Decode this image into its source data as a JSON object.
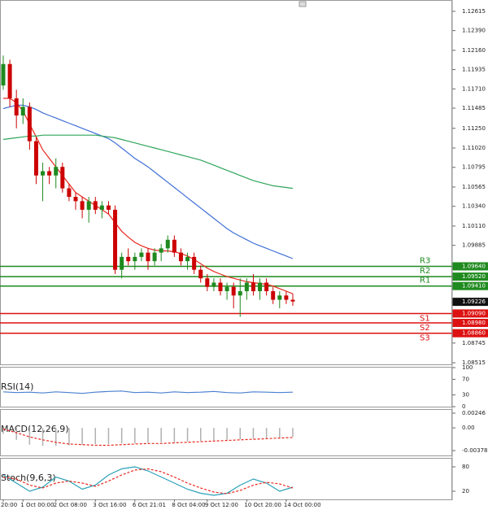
{
  "chart_data": [
    {
      "type": "candlestick",
      "categories": [
        "20:00",
        null,
        null,
        "1 Oct 00:00",
        null,
        null,
        null,
        null,
        "2 Oct 08:00",
        null,
        null,
        null,
        null,
        null,
        "3 Oct 16:00",
        null,
        null,
        null,
        null,
        null,
        "6 Oct 21:01",
        null,
        null,
        null,
        null,
        null,
        "8 Oct 04:00",
        null,
        null,
        null,
        null,
        "9 Oct 12:00",
        null,
        null,
        null,
        null,
        null,
        "10 Oct 20:00",
        null,
        null,
        null,
        null,
        null,
        "14 Oct 00:00",
        null
      ],
      "ohlc": [
        [
          1.1175,
          1.121,
          1.117,
          1.12
        ],
        [
          1.12,
          1.1205,
          1.115,
          1.116
        ],
        [
          1.116,
          1.117,
          1.1125,
          1.114
        ],
        [
          1.114,
          1.116,
          1.113,
          1.115
        ],
        [
          1.115,
          1.1155,
          1.11,
          1.111
        ],
        [
          1.111,
          1.1115,
          1.106,
          1.107
        ],
        [
          1.107,
          1.1085,
          1.104,
          1.1075
        ],
        [
          1.1075,
          1.108,
          1.106,
          1.107
        ],
        [
          1.107,
          1.109,
          1.1055,
          1.108
        ],
        [
          1.108,
          1.1085,
          1.105,
          1.1055
        ],
        [
          1.1055,
          1.106,
          1.104,
          1.1045
        ],
        [
          1.1045,
          1.105,
          1.103,
          1.104
        ],
        [
          1.104,
          1.1045,
          1.102,
          1.103
        ],
        [
          1.103,
          1.1045,
          1.1015,
          1.104
        ],
        [
          1.104,
          1.1045,
          1.1025,
          1.103
        ],
        [
          1.103,
          1.104,
          1.102,
          1.1035
        ],
        [
          1.1035,
          1.104,
          1.1025,
          1.103
        ],
        [
          1.103,
          1.1035,
          1.0955,
          1.096
        ],
        [
          1.096,
          1.098,
          1.095,
          1.0975
        ],
        [
          1.0975,
          1.0985,
          1.0965,
          1.097
        ],
        [
          1.097,
          1.098,
          1.096,
          1.0975
        ],
        [
          1.0975,
          1.0985,
          1.097,
          1.098
        ],
        [
          1.098,
          1.0985,
          1.096,
          1.097
        ],
        [
          1.097,
          1.0985,
          1.0965,
          1.098
        ],
        [
          1.098,
          1.099,
          1.097,
          1.0985
        ],
        [
          1.0985,
          1.1,
          1.098,
          1.0995
        ],
        [
          1.0995,
          1.1,
          1.0975,
          1.098
        ],
        [
          1.098,
          1.0985,
          1.0965,
          1.097
        ],
        [
          1.097,
          1.098,
          1.096,
          1.0975
        ],
        [
          1.0975,
          1.098,
          1.0955,
          1.096
        ],
        [
          1.096,
          1.0965,
          1.0945,
          1.095
        ],
        [
          1.095,
          1.0955,
          1.0935,
          1.094
        ],
        [
          1.094,
          1.095,
          1.0935,
          1.0945
        ],
        [
          1.0945,
          1.095,
          1.093,
          1.0935
        ],
        [
          1.0935,
          1.0945,
          1.0925,
          1.094
        ],
        [
          1.094,
          1.0945,
          1.0915,
          1.093
        ],
        [
          1.093,
          1.095,
          1.0905,
          1.0935
        ],
        [
          1.0935,
          1.095,
          1.0925,
          1.0945
        ],
        [
          1.0945,
          1.0955,
          1.093,
          1.0935
        ],
        [
          1.0935,
          1.095,
          1.0925,
          1.0945
        ],
        [
          1.0945,
          1.095,
          1.093,
          1.0935
        ],
        [
          1.0935,
          1.094,
          1.092,
          1.0925
        ],
        [
          1.0925,
          1.0935,
          1.0915,
          1.093
        ],
        [
          1.093,
          1.0935,
          1.092,
          1.0925
        ],
        [
          1.0925,
          1.0932,
          1.0918,
          1.0923
        ]
      ],
      "up_color": "#1f8a1f",
      "down_color": "#cc0000",
      "lines": [
        {
          "color": "#e8281e",
          "values": [
            1.116,
            1.116,
            1.1155,
            1.1145,
            1.113,
            1.1115,
            1.11,
            1.109,
            1.108,
            1.107,
            1.106,
            1.105,
            1.1045,
            1.104,
            1.1035,
            1.103,
            1.1025,
            1.1015,
            1.1005,
            1.0998,
            1.0992,
            1.0988,
            1.0985,
            1.0983,
            1.0982,
            1.0982,
            1.0981,
            1.0979,
            1.0976,
            1.0972,
            1.0967,
            1.0962,
            1.0958,
            1.0955,
            1.0952,
            1.095,
            1.0948,
            1.0946,
            1.0945,
            1.0944,
            1.0943,
            1.0941,
            1.0938,
            1.0935,
            1.0932
          ]
        },
        {
          "color": "#3f6fd6",
          "values": [
            1.1148,
            1.115,
            1.1152,
            1.1152,
            1.115,
            1.1147,
            1.1143,
            1.114,
            1.1137,
            1.1134,
            1.1131,
            1.1128,
            1.1125,
            1.1122,
            1.1119,
            1.1116,
            1.1113,
            1.1108,
            1.1102,
            1.1096,
            1.109,
            1.1085,
            1.108,
            1.1074,
            1.1068,
            1.1062,
            1.1056,
            1.105,
            1.1044,
            1.1038,
            1.1032,
            1.1026,
            1.102,
            1.1014,
            1.1008,
            1.1003,
            1.0999,
            1.0995,
            1.0991,
            1.0988,
            1.0985,
            1.0982,
            1.0979,
            1.0976,
            1.0973
          ]
        },
        {
          "color": "#2fa55a",
          "values": [
            1.1112,
            1.1113,
            1.1114,
            1.1115,
            1.1116,
            1.1116,
            1.1117,
            1.1117,
            1.1117,
            1.1117,
            1.1117,
            1.1117,
            1.1117,
            1.1117,
            1.1117,
            1.1116,
            1.1115,
            1.1114,
            1.1112,
            1.111,
            1.1108,
            1.1106,
            1.1104,
            1.1102,
            1.11,
            1.1098,
            1.1096,
            1.1094,
            1.1092,
            1.109,
            1.1088,
            1.1085,
            1.1082,
            1.1079,
            1.1076,
            1.1073,
            1.107,
            1.1067,
            1.1064,
            1.1062,
            1.106,
            1.1058,
            1.1057,
            1.1056,
            1.1055
          ]
        }
      ],
      "levels": [
        {
          "name": "R3",
          "value": 1.0964,
          "value_label": "1.09640",
          "color": "#1f8a1f"
        },
        {
          "name": "R2",
          "value": 1.0952,
          "value_label": "1.09520",
          "color": "#1f8a1f"
        },
        {
          "name": "R1",
          "value": 1.0941,
          "value_label": "1.09410",
          "color": "#1f8a1f"
        },
        {
          "name": "S1",
          "value": 1.0909,
          "value_label": "1.09090",
          "color": "#dd1111"
        },
        {
          "name": "S2",
          "value": 1.0898,
          "value_label": "1.08980",
          "color": "#dd1111"
        },
        {
          "name": "S3",
          "value": 1.0886,
          "value_label": "1.08860",
          "color": "#dd1111"
        }
      ],
      "last_price": 1.09226,
      "ylim": [
        1.08506,
        1.12728
      ],
      "yticks": [
        1.12615,
        {
          "value": 1.1239,
          "label": "1.12390"
        },
        {
          "value": 1.1216,
          "label": "1.12160"
        },
        1.11935,
        {
          "value": 1.1171,
          "label": "1.11710"
        },
        1.11485,
        {
          "value": 1.1125,
          "label": "1.11250"
        },
        {
          "value": 1.1102,
          "label": "1.11020"
        },
        1.10795,
        1.10565,
        {
          "value": 1.1034,
          "label": "1.10340"
        },
        {
          "value": 1.1011,
          "label": "1.10110"
        },
        1.09885,
        1.08745,
        1.08515
      ]
    },
    {
      "type": "line",
      "title": "RSI(14)",
      "series": [
        {
          "color": "#4a7fd0",
          "values": [
            38,
            36,
            37,
            35,
            38,
            36,
            34,
            37,
            39,
            40,
            36,
            37,
            35,
            38,
            36,
            37,
            39,
            36,
            35,
            38,
            37,
            36,
            37
          ]
        }
      ],
      "ylim": [
        0,
        100
      ],
      "yticks": [
        100,
        70,
        30,
        0
      ]
    },
    {
      "type": "macd",
      "title": "MACD(12,26,9)",
      "histogram": [
        -0.001,
        -0.002,
        -0.0028,
        -0.003,
        -0.003,
        -0.0029,
        -0.0028,
        -0.0027,
        -0.0027,
        -0.0026,
        -0.0026,
        -0.0025,
        -0.0024,
        -0.0024,
        -0.0023,
        -0.0022,
        -0.0021,
        -0.002,
        -0.0019,
        -0.0018,
        -0.0017,
        -0.0016,
        -0.0015
      ],
      "signal": [
        -0.0002,
        -0.0008,
        -0.0015,
        -0.002,
        -0.0024,
        -0.0027,
        -0.0028,
        -0.0029,
        -0.0029,
        -0.0028,
        -0.0027,
        -0.0026,
        -0.0026,
        -0.0025,
        -0.0024,
        -0.0023,
        -0.0022,
        -0.0021,
        -0.002,
        -0.0019,
        -0.0018,
        -0.0017,
        -0.0016
      ],
      "histogram_color": "#b0b0b0",
      "signal_color": "#e8281e",
      "ylim": [
        -0.0046,
        0.003
      ],
      "yticks": [
        0.00246,
        {
          "value": 0,
          "label": "0.00"
        },
        -0.003788
      ]
    },
    {
      "type": "line",
      "title": "Stoch(9,6,3)",
      "series": [
        {
          "color": "#2aa0b8",
          "values": [
            60,
            40,
            20,
            30,
            55,
            45,
            25,
            35,
            60,
            75,
            80,
            70,
            55,
            40,
            25,
            15,
            10,
            15,
            35,
            50,
            40,
            20,
            30
          ]
        },
        {
          "color": "#e8281e",
          "dashed": true,
          "values": [
            55,
            50,
            35,
            28,
            40,
            45,
            40,
            32,
            45,
            60,
            72,
            75,
            68,
            55,
            40,
            28,
            18,
            14,
            22,
            35,
            42,
            38,
            28
          ]
        }
      ],
      "ylim": [
        0,
        100
      ],
      "yticks": [
        80,
        20
      ]
    }
  ]
}
